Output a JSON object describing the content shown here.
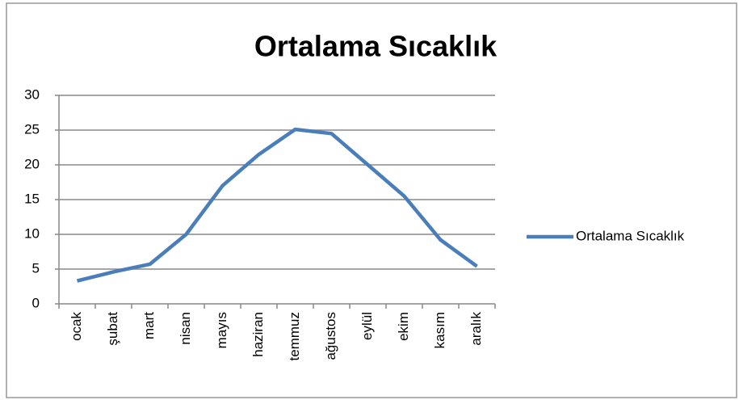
{
  "chart_data": {
    "type": "line",
    "title": "Ortalama Sıcaklık",
    "categories": [
      "ocak",
      "şubat",
      "mart",
      "nisan",
      "mayıs",
      "haziran",
      "temmuz",
      "ağustos",
      "eylül",
      "ekim",
      "kasım",
      "aralık"
    ],
    "series": [
      {
        "name": "Ortalama Sıcaklık",
        "color": "#4a7ebb",
        "values": [
          3.3,
          4.6,
          5.7,
          10,
          17,
          21.5,
          25.1,
          24.5,
          20,
          15.5,
          9.2,
          5.4
        ]
      }
    ],
    "ylim": [
      0,
      30
    ],
    "yticks": [
      0,
      5,
      10,
      15,
      20,
      25,
      30
    ],
    "grid": true,
    "legend": "right"
  }
}
